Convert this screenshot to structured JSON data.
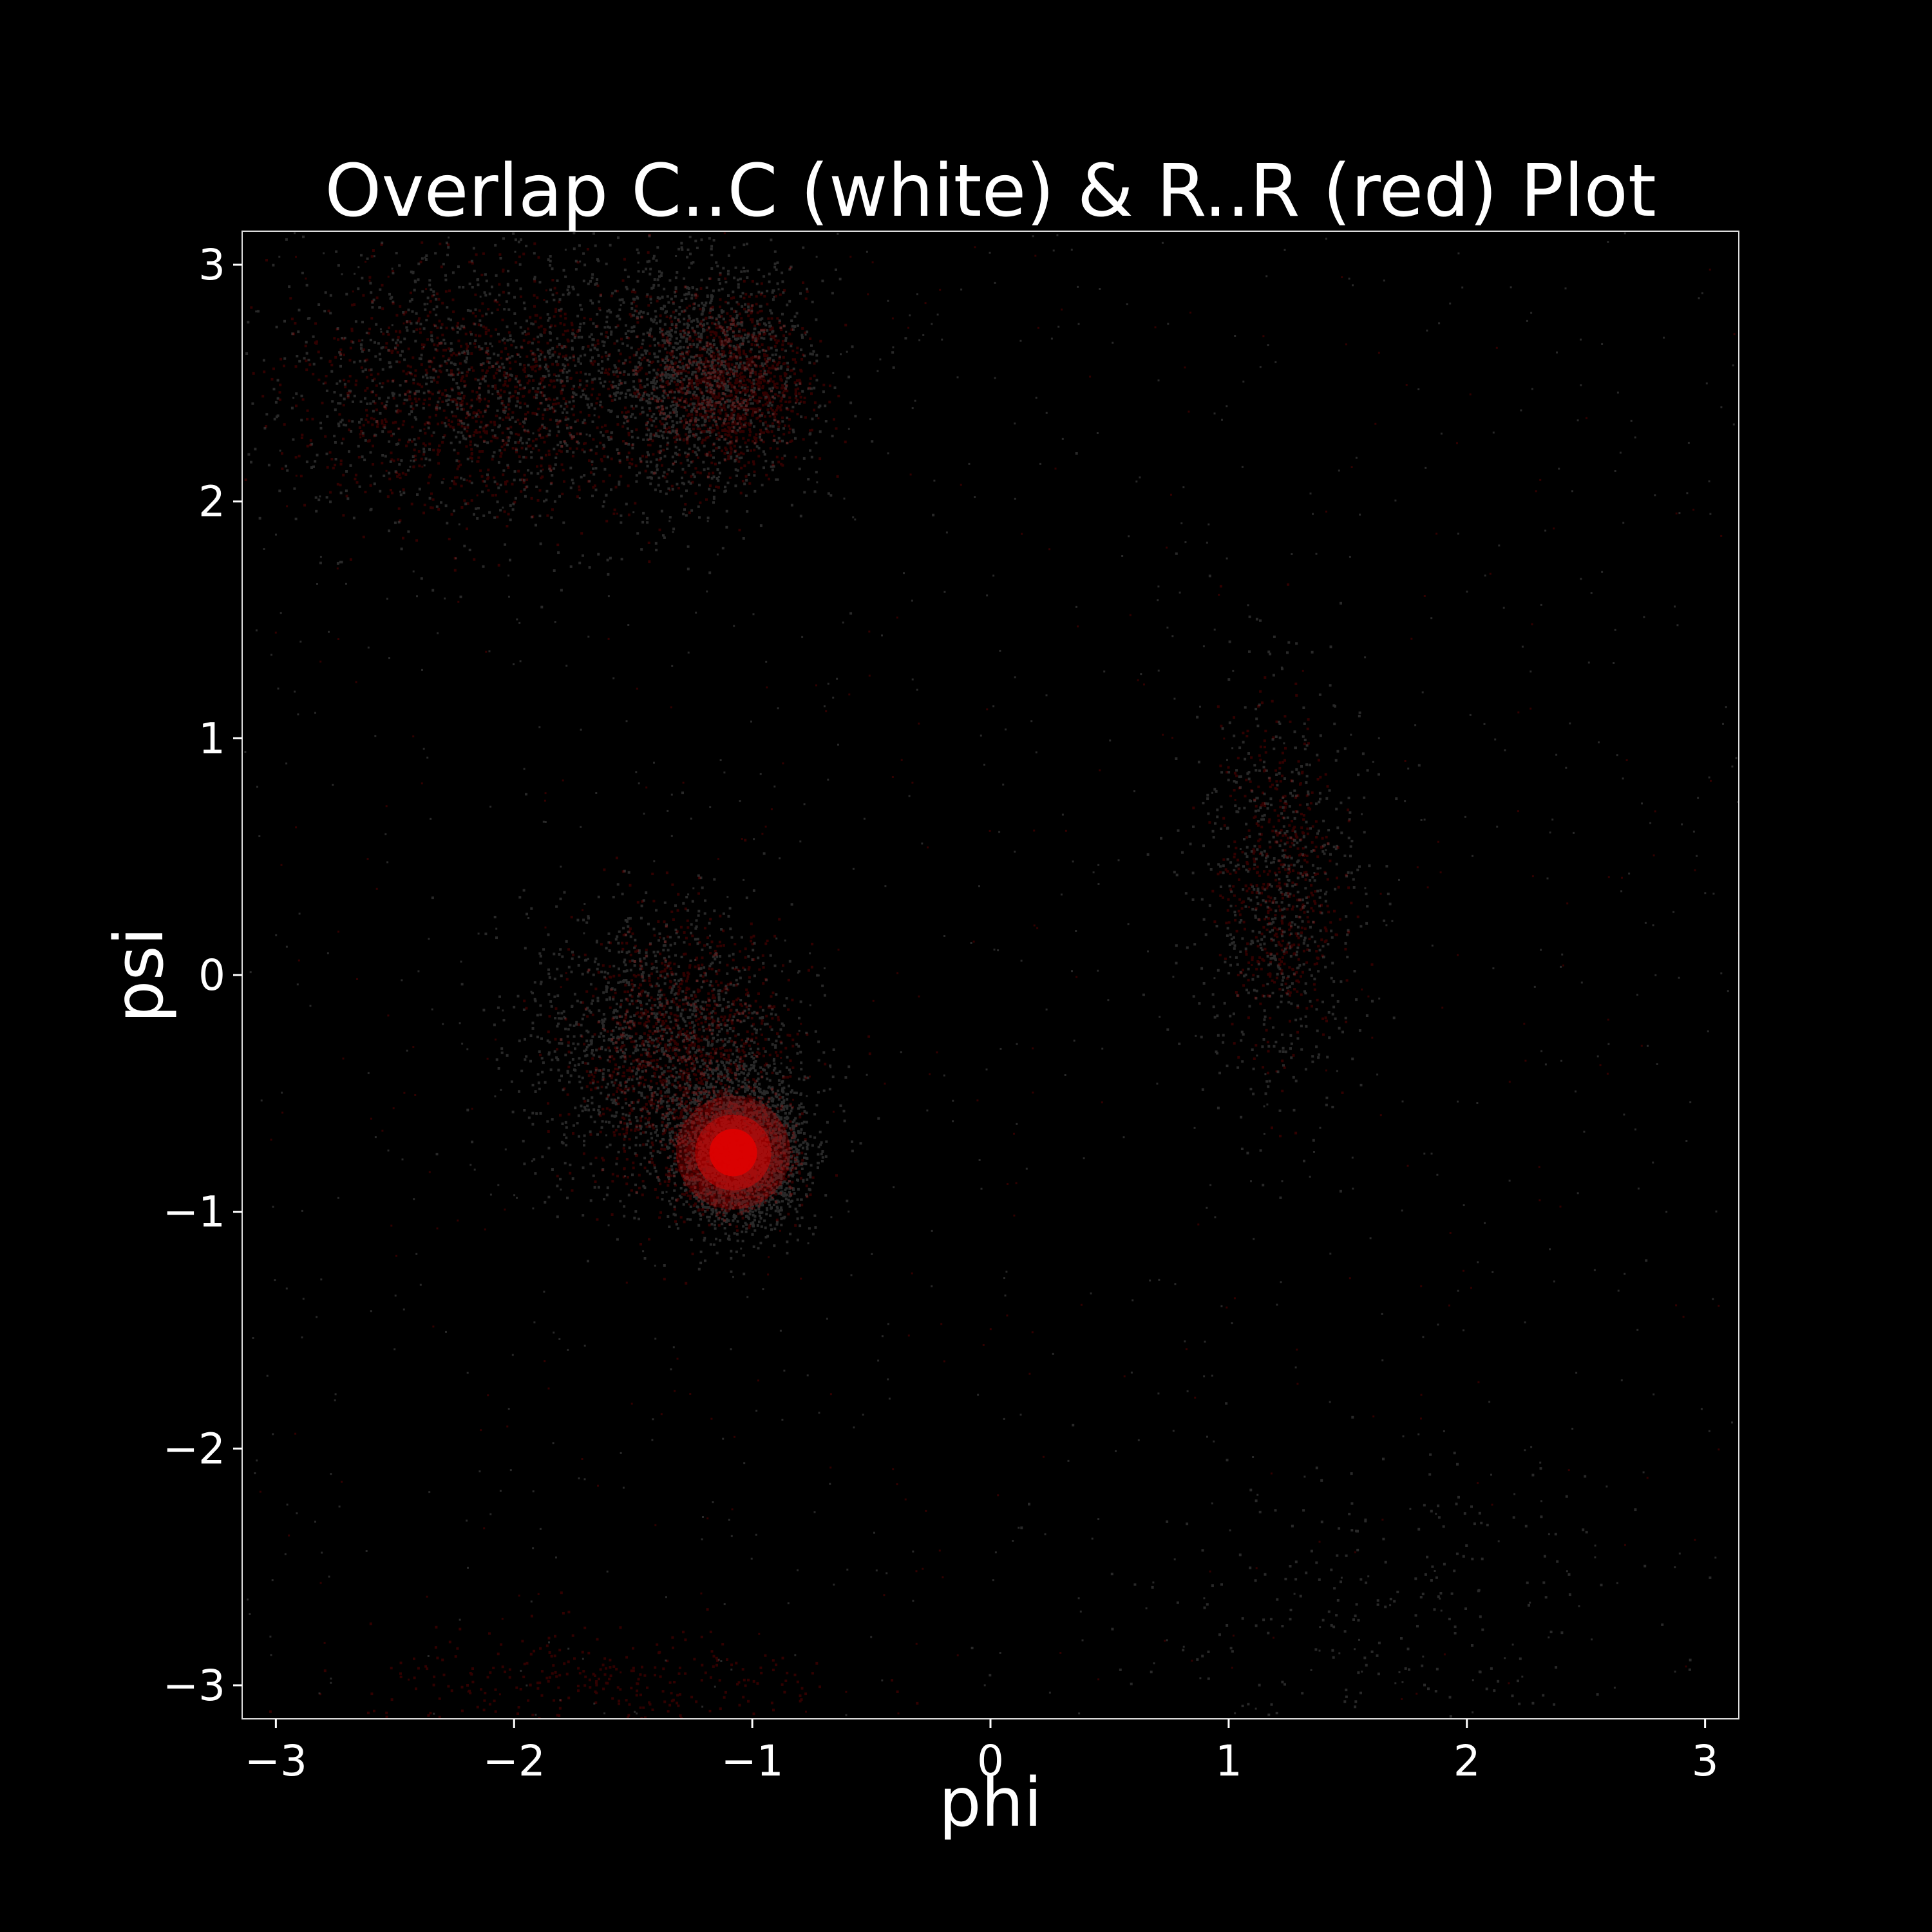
{
  "chart_data": {
    "type": "scatter",
    "title": "Overlap C..C (white) & R..R (red) Plot",
    "xlabel": "phi",
    "ylabel": "psi",
    "xlim": [
      -3.1416,
      3.1416
    ],
    "ylim": [
      -3.1416,
      3.1416
    ],
    "x_ticks": [
      {
        "value": -3,
        "label": "−3"
      },
      {
        "value": -2,
        "label": "−2"
      },
      {
        "value": -1,
        "label": "−1"
      },
      {
        "value": 0,
        "label": "0"
      },
      {
        "value": 1,
        "label": "1"
      },
      {
        "value": 2,
        "label": "2"
      },
      {
        "value": 3,
        "label": "3"
      }
    ],
    "y_ticks": [
      {
        "value": -3,
        "label": "−3"
      },
      {
        "value": -2,
        "label": "−2"
      },
      {
        "value": -1,
        "label": "−1"
      },
      {
        "value": 0,
        "label": "0"
      },
      {
        "value": 1,
        "label": "1"
      },
      {
        "value": 2,
        "label": "2"
      },
      {
        "value": 3,
        "label": "3"
      }
    ],
    "grid": false,
    "background_color": "#000000",
    "frame_color": "#dddddd",
    "series": [
      {
        "color": "#ffffff",
        "clusters": [
          {
            "center": [
              -1.05,
              -0.75
            ],
            "spread": [
              0.13,
              0.15
            ],
            "density": 1.0
          },
          {
            "center": [
              -1.4,
              -0.3
            ],
            "spread": [
              0.28,
              0.3
            ],
            "density": 0.55
          },
          {
            "center": [
              -2.0,
              2.5
            ],
            "spread": [
              0.55,
              0.32
            ],
            "density": 0.5
          },
          {
            "center": [
              -1.2,
              2.55
            ],
            "spread": [
              0.22,
              0.25
            ],
            "density": 0.45
          },
          {
            "center": [
              1.2,
              0.35
            ],
            "spread": [
              0.18,
              0.45
            ],
            "density": 0.25
          },
          {
            "center": [
              1.6,
              -2.7
            ],
            "spread": [
              0.6,
              0.35
            ],
            "density": 0.1
          }
        ]
      },
      {
        "color": "#e00000",
        "clusters": [
          {
            "center": [
              -1.08,
              -0.75
            ],
            "spread": [
              0.1,
              0.1
            ],
            "density": 1.0
          },
          {
            "center": [
              -1.3,
              -0.35
            ],
            "spread": [
              0.22,
              0.28
            ],
            "density": 0.5
          },
          {
            "center": [
              -2.1,
              2.45
            ],
            "spread": [
              0.45,
              0.25
            ],
            "density": 0.45
          },
          {
            "center": [
              -1.1,
              2.5
            ],
            "spread": [
              0.16,
              0.18
            ],
            "density": 0.45
          },
          {
            "center": [
              1.2,
              0.4
            ],
            "spread": [
              0.12,
              0.35
            ],
            "density": 0.2
          },
          {
            "center": [
              -1.6,
              -3.0
            ],
            "spread": [
              0.5,
              0.12
            ],
            "density": 0.12
          }
        ]
      }
    ]
  }
}
